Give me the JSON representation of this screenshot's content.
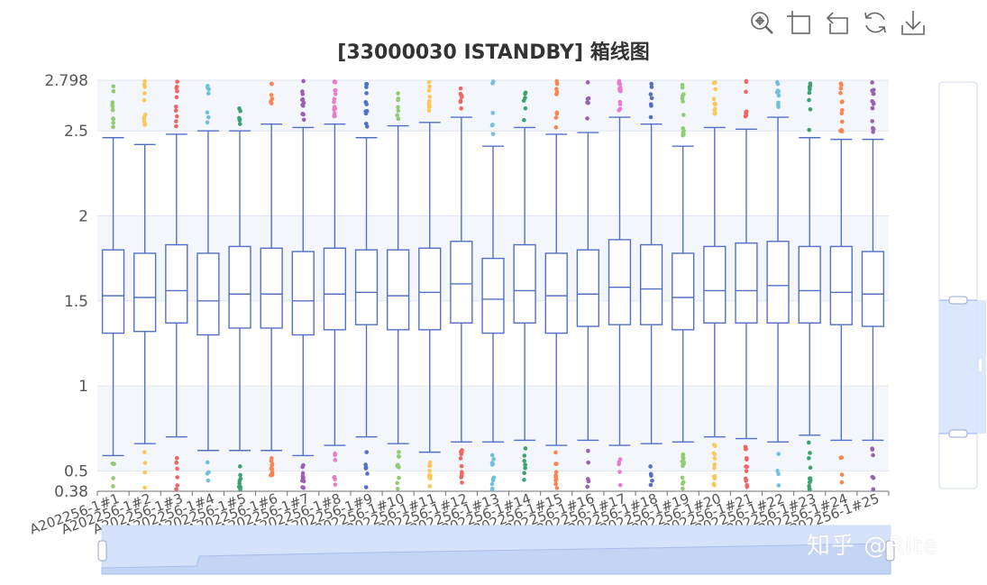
{
  "toolbox": {
    "icons": [
      "zoom-icon",
      "zoom-reset-icon",
      "restore-icon",
      "refresh-icon",
      "download-icon"
    ]
  },
  "watermark": "知乎 @Rite",
  "chart_data": {
    "type": "boxplot",
    "title": "[33000030 ISTANDBY] 箱线图",
    "xlabel": "",
    "ylabel": "",
    "ylim": [
      0.38,
      2.798
    ],
    "yticks": [
      "0.38",
      "0.5",
      "1",
      "1.5",
      "2",
      "2.5",
      "2.798"
    ],
    "grid": true,
    "categories": [
      "A202256-1#1",
      "A202256-1#2",
      "A202256-1#3",
      "A202256-1#4",
      "A202256-1#5",
      "A202256-1#6",
      "A202256-1#7",
      "A202256-1#8",
      "A202256-1#9",
      "A202256-1#10",
      "A202256-1#11",
      "A202256-1#12",
      "A202256-1#13",
      "A202256-1#14",
      "A202256-1#15",
      "A202256-1#16",
      "A202256-1#17",
      "A202256-1#18",
      "A202256-1#19",
      "A202256-1#20",
      "A202256-1#21",
      "A202256-1#22",
      "A202256-1#23",
      "A202256-1#24",
      "A202256-1#25"
    ],
    "boxes": [
      [
        0.59,
        1.31,
        1.53,
        1.8,
        2.46
      ],
      [
        0.66,
        1.32,
        1.52,
        1.78,
        2.42
      ],
      [
        0.7,
        1.37,
        1.56,
        1.83,
        2.48
      ],
      [
        0.62,
        1.3,
        1.5,
        1.78,
        2.5
      ],
      [
        0.62,
        1.34,
        1.54,
        1.82,
        2.5
      ],
      [
        0.62,
        1.34,
        1.54,
        1.81,
        2.54
      ],
      [
        0.59,
        1.3,
        1.5,
        1.79,
        2.52
      ],
      [
        0.65,
        1.33,
        1.54,
        1.81,
        2.54
      ],
      [
        0.7,
        1.36,
        1.55,
        1.8,
        2.46
      ],
      [
        0.66,
        1.33,
        1.53,
        1.8,
        2.53
      ],
      [
        0.61,
        1.33,
        1.55,
        1.81,
        2.55
      ],
      [
        0.67,
        1.37,
        1.6,
        1.85,
        2.58
      ],
      [
        0.67,
        1.31,
        1.51,
        1.75,
        2.41
      ],
      [
        0.68,
        1.37,
        1.56,
        1.83,
        2.52
      ],
      [
        0.65,
        1.31,
        1.53,
        1.78,
        2.48
      ],
      [
        0.68,
        1.35,
        1.54,
        1.8,
        2.49
      ],
      [
        0.65,
        1.36,
        1.58,
        1.86,
        2.58
      ],
      [
        0.66,
        1.36,
        1.57,
        1.83,
        2.54
      ],
      [
        0.67,
        1.33,
        1.52,
        1.78,
        2.41
      ],
      [
        0.7,
        1.37,
        1.56,
        1.82,
        2.52
      ],
      [
        0.69,
        1.37,
        1.56,
        1.84,
        2.51
      ],
      [
        0.67,
        1.37,
        1.59,
        1.85,
        2.58
      ],
      [
        0.71,
        1.37,
        1.56,
        1.82,
        2.46
      ],
      [
        0.68,
        1.36,
        1.55,
        1.82,
        2.45
      ],
      [
        0.68,
        1.35,
        1.54,
        1.79,
        2.45
      ]
    ],
    "outlier_colors": [
      "#91cc75",
      "#fac858",
      "#ee6666",
      "#73c0de",
      "#3ba272",
      "#fc8452",
      "#9a60b4",
      "#ea7ccc",
      "#5470c6",
      "#91cc75",
      "#fac858",
      "#ee6666",
      "#73c0de",
      "#3ba272",
      "#fc8452",
      "#9a60b4",
      "#ea7ccc",
      "#5470c6",
      "#91cc75",
      "#fac858",
      "#ee6666",
      "#73c0de",
      "#3ba272",
      "#fc8452",
      "#9a60b4"
    ],
    "box_color": "#5470c6",
    "datazoom_y": {
      "start": 0.1,
      "end": 0.5
    },
    "datazoom_x": {
      "start": 0.0,
      "end": 1.0
    }
  }
}
